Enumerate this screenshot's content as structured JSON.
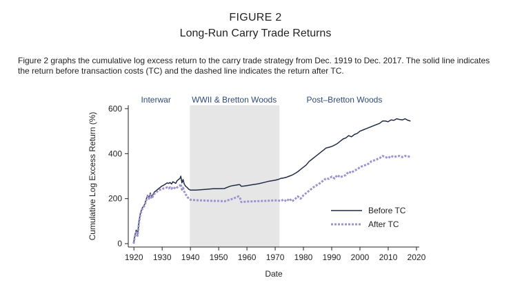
{
  "figure": {
    "label": "FIGURE 2",
    "title": "Long-Run Carry Trade Returns",
    "caption": "Figure 2 graphs the cumulative log excess return to the carry trade strategy from Dec. 1919 to Dec. 2017. The solid line indicates the return before transaction costs (TC) and the dashed line indicates the return after TC."
  },
  "chart_data": {
    "type": "line",
    "title": "Long-Run Carry Trade Returns",
    "xlabel": "Date",
    "ylabel": "Cumulative Log Excess Return (%)",
    "xlim": [
      1918,
      2021
    ],
    "ylim": [
      -15,
      615
    ],
    "xticks": [
      1920,
      1930,
      1940,
      1950,
      1960,
      1970,
      1980,
      1990,
      2000,
      2010,
      2020
    ],
    "yticks": [
      0,
      200,
      400,
      600
    ],
    "grid": false,
    "legend_position": "bottom-right",
    "shaded_region": {
      "start": 1939.8,
      "end": 1971.5,
      "color": "#e6e6e6"
    },
    "period_labels": [
      {
        "text": "Interwar",
        "center": 1927.8
      },
      {
        "text": "WWII & Bretton Woods",
        "center": 1955.5
      },
      {
        "text": "Post–Bretton Woods",
        "center": 1994.5
      }
    ],
    "series": [
      {
        "name": "Before TC",
        "style": "solid",
        "color": "#1f2a44",
        "x": [
          1919.9,
          1920.3,
          1920.8,
          1921.3,
          1921.8,
          1922.3,
          1922.8,
          1923.3,
          1923.8,
          1924.3,
          1924.8,
          1925.3,
          1925.8,
          1926.3,
          1926.8,
          1927.3,
          1927.8,
          1928.3,
          1928.8,
          1929.3,
          1929.8,
          1930.3,
          1930.8,
          1931.3,
          1931.8,
          1932.3,
          1932.8,
          1933.3,
          1933.8,
          1934.3,
          1934.8,
          1935.3,
          1935.8,
          1936.3,
          1936.6,
          1937.0,
          1937.4,
          1937.8,
          1938.3,
          1938.8,
          1939.4,
          1940,
          1942,
          1944,
          1946,
          1948,
          1950,
          1952,
          1953,
          1954,
          1955,
          1956,
          1957,
          1957.5,
          1958,
          1959,
          1960,
          1962,
          1964,
          1966,
          1968,
          1970,
          1971,
          1972,
          1973,
          1974,
          1975,
          1976,
          1977,
          1978,
          1979,
          1980,
          1981,
          1982,
          1983,
          1984,
          1985,
          1986,
          1987,
          1988,
          1989,
          1990,
          1991,
          1992,
          1993,
          1994,
          1995,
          1996,
          1997,
          1998,
          1999,
          2000,
          2001,
          2002,
          2003,
          2004,
          2005,
          2006,
          2007,
          2008,
          2009,
          2010,
          2011,
          2012,
          2013,
          2014,
          2015,
          2016,
          2017,
          2017.9
        ],
        "y": [
          0,
          35,
          60,
          40,
          100,
          135,
          155,
          165,
          175,
          195,
          215,
          205,
          225,
          205,
          220,
          230,
          235,
          240,
          245,
          250,
          255,
          258,
          262,
          266,
          270,
          268,
          272,
          265,
          275,
          272,
          268,
          280,
          285,
          290,
          300,
          270,
          285,
          265,
          255,
          250,
          242,
          238,
          238,
          240,
          242,
          244,
          244,
          245,
          250,
          255,
          258,
          260,
          262,
          262,
          255,
          256,
          258,
          262,
          266,
          272,
          278,
          282,
          285,
          290,
          292,
          295,
          300,
          305,
          312,
          320,
          330,
          340,
          350,
          365,
          375,
          385,
          395,
          405,
          415,
          425,
          428,
          432,
          438,
          445,
          455,
          465,
          470,
          480,
          475,
          485,
          490,
          500,
          505,
          510,
          515,
          520,
          525,
          530,
          535,
          545,
          545,
          542,
          550,
          548,
          555,
          552,
          550,
          555,
          548,
          545
        ]
      },
      {
        "name": "After TC",
        "style": "dashed",
        "color": "#9b93cf",
        "x": [
          1919.9,
          1920.3,
          1920.8,
          1921.3,
          1921.8,
          1922.3,
          1922.8,
          1923.3,
          1923.8,
          1924.3,
          1924.8,
          1925.3,
          1925.8,
          1926.3,
          1926.8,
          1927.3,
          1927.8,
          1928.3,
          1928.8,
          1929.3,
          1929.8,
          1930.3,
          1930.8,
          1931.3,
          1931.8,
          1932.3,
          1932.8,
          1933.3,
          1933.8,
          1934.3,
          1934.8,
          1935.3,
          1935.8,
          1936.3,
          1936.6,
          1937.0,
          1937.4,
          1937.8,
          1938.3,
          1938.8,
          1939.4,
          1940,
          1942,
          1944,
          1946,
          1948,
          1950,
          1952,
          1953,
          1954,
          1955,
          1956,
          1957,
          1957.5,
          1958,
          1959,
          1960,
          1962,
          1964,
          1966,
          1968,
          1970,
          1971,
          1972,
          1973,
          1974,
          1975,
          1976,
          1977,
          1978,
          1979,
          1980,
          1981,
          1982,
          1983,
          1984,
          1985,
          1986,
          1987,
          1988,
          1989,
          1990,
          1991,
          1992,
          1993,
          1994,
          1995,
          1996,
          1997,
          1998,
          1999,
          2000,
          2001,
          2002,
          2003,
          2004,
          2005,
          2006,
          2007,
          2008,
          2009,
          2010,
          2011,
          2012,
          2013,
          2014,
          2015,
          2016,
          2017,
          2017.9
        ],
        "y": [
          0,
          30,
          50,
          35,
          95,
          130,
          150,
          160,
          170,
          190,
          210,
          200,
          218,
          200,
          212,
          222,
          228,
          232,
          236,
          240,
          242,
          245,
          246,
          248,
          250,
          246,
          250,
          244,
          252,
          248,
          244,
          250,
          255,
          258,
          265,
          240,
          248,
          232,
          220,
          210,
          200,
          195,
          193,
          192,
          191,
          190,
          190,
          188,
          192,
          195,
          200,
          205,
          210,
          205,
          185,
          186,
          187,
          188,
          189,
          190,
          191,
          192,
          192,
          190,
          196,
          188,
          200,
          188,
          198,
          210,
          200,
          215,
          225,
          235,
          245,
          255,
          262,
          270,
          280,
          290,
          288,
          298,
          290,
          305,
          295,
          300,
          305,
          320,
          315,
          325,
          330,
          340,
          345,
          350,
          355,
          365,
          370,
          375,
          380,
          390,
          385,
          380,
          390,
          385,
          388,
          390,
          385,
          390,
          388,
          385
        ]
      }
    ]
  }
}
